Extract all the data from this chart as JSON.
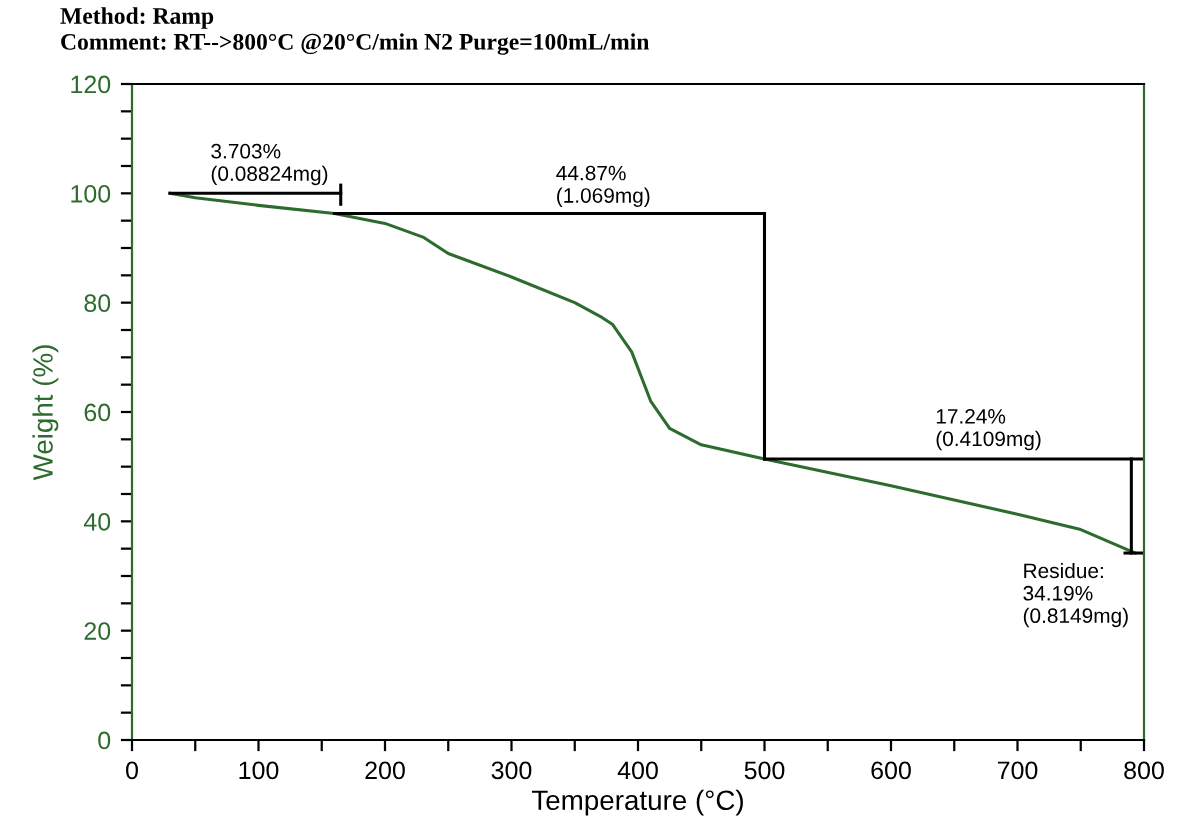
{
  "chart_data": {
    "type": "line",
    "title": "Comment: RT-->800°C @20°C/min N2 Purge=100mL/min",
    "subtitle": "Method: Ramp",
    "xlabel": "Temperature (°C)",
    "ylabel": "Weight (%)",
    "xlim": [
      0,
      800
    ],
    "ylim": [
      0,
      120
    ],
    "xticks": [
      0,
      {
        "value": 50,
        "label": null
      },
      100,
      {
        "value": 150,
        "label": null
      },
      200,
      {
        "value": 250,
        "label": null
      },
      300,
      {
        "value": 350,
        "label": null
      },
      400,
      {
        "value": 450,
        "label": null
      },
      500,
      {
        "value": 550,
        "label": null
      },
      600,
      {
        "value": 650,
        "label": null
      },
      700,
      {
        "value": 750,
        "label": null
      },
      800
    ],
    "yticks": [
      0,
      {
        "value": 5,
        "label": null
      },
      {
        "value": 10,
        "label": null
      },
      {
        "value": 15,
        "label": null
      },
      20,
      {
        "value": 25,
        "label": null
      },
      {
        "value": 30,
        "label": null
      },
      {
        "value": 35,
        "label": null
      },
      40,
      {
        "value": 45,
        "label": null
      },
      {
        "value": 50,
        "label": null
      },
      {
        "value": 55,
        "label": null
      },
      60,
      {
        "value": 65,
        "label": null
      },
      {
        "value": 70,
        "label": null
      },
      {
        "value": 75,
        "label": null
      },
      80,
      {
        "value": 85,
        "label": null
      },
      {
        "value": 90,
        "label": null
      },
      {
        "value": 95,
        "label": null
      },
      100,
      {
        "value": 105,
        "label": null
      },
      {
        "value": 110,
        "label": null
      },
      {
        "value": 115,
        "label": null
      },
      120
    ],
    "grid": false,
    "legend": false,
    "series": [
      {
        "color": "#2e6b2e",
        "x": [
          30,
          50,
          100,
          160,
          200,
          230,
          250,
          258,
          300,
          350,
          370,
          380,
          395,
          410,
          425,
          450,
          500,
          600,
          700,
          750,
          793
        ],
        "values": [
          100,
          99.2,
          97.8,
          96.3,
          94.5,
          92,
          89,
          88.3,
          84.7,
          80,
          77.5,
          76,
          71,
          62,
          57,
          54,
          51.4,
          46.5,
          41.3,
          38.5,
          34.2
        ]
      },
      {
        "color": "#000000",
        "x": [
          30,
          165
        ],
        "values": [
          100,
          100
        ]
      },
      {
        "color": "#000000",
        "x": [
          165,
          165
        ],
        "values": [
          98,
          101.5
        ]
      },
      {
        "color": "#000000",
        "x": [
          160,
          500
        ],
        "values": [
          96.3,
          96.3
        ]
      },
      {
        "color": "#000000",
        "x": [
          500,
          500
        ],
        "values": [
          96.3,
          51.4
        ]
      },
      {
        "color": "#000000",
        "x": [
          500,
          800
        ],
        "values": [
          51.4,
          51.4
        ]
      },
      {
        "color": "#000000",
        "x": [
          790,
          790
        ],
        "values": [
          51.4,
          34.2
        ]
      },
      {
        "color": "#000000",
        "x": [
          785,
          800
        ],
        "values": [
          34.2,
          34.2
        ]
      }
    ],
    "annotations": [
      {
        "text": "3.703%\n(0.08824mg)",
        "x": 62,
        "y": 101.5
      },
      {
        "text": "44.87%\n(1.069mg)",
        "x": 335,
        "y": 97.5
      },
      {
        "text": "17.24%\n(0.4109mg)",
        "x": 635,
        "y": 53
      },
      "Residue:\n34.19%\n(0.8149mg)"
    ]
  }
}
